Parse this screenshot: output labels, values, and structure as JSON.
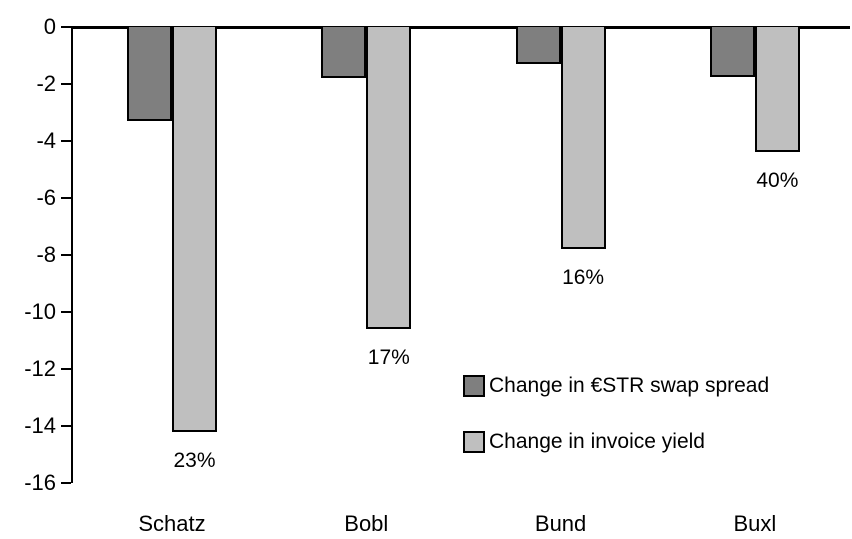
{
  "chart_data": {
    "type": "bar",
    "title": "",
    "xlabel": "",
    "ylabel": "",
    "categories": [
      "Schatz",
      "Bobl",
      "Bund",
      "Buxl"
    ],
    "series": [
      {
        "name": "Change in €STR swap spread",
        "color": "#7F7F7F",
        "values": [
          -3.3,
          -1.8,
          -1.3,
          -1.75
        ]
      },
      {
        "name": "Change in invoice yield",
        "color": "#BFBFBF",
        "values": [
          -14.2,
          -10.6,
          -7.8,
          -4.4
        ],
        "point_labels": [
          "23%",
          "17%",
          "16%",
          "40%"
        ]
      }
    ],
    "ylim": [
      -16,
      0
    ],
    "yticks": [
      0,
      -2,
      -4,
      -6,
      -8,
      -10,
      -12,
      -14,
      -16
    ],
    "grid": false,
    "legend_position": "inside-right",
    "background": "#FFFFFF",
    "axis_color": "#000000"
  },
  "legend": {
    "items": [
      {
        "label": "Change in €STR swap spread",
        "color": "#7F7F7F"
      },
      {
        "label": "Change in invoice yield",
        "color": "#BFBFBF"
      }
    ]
  }
}
